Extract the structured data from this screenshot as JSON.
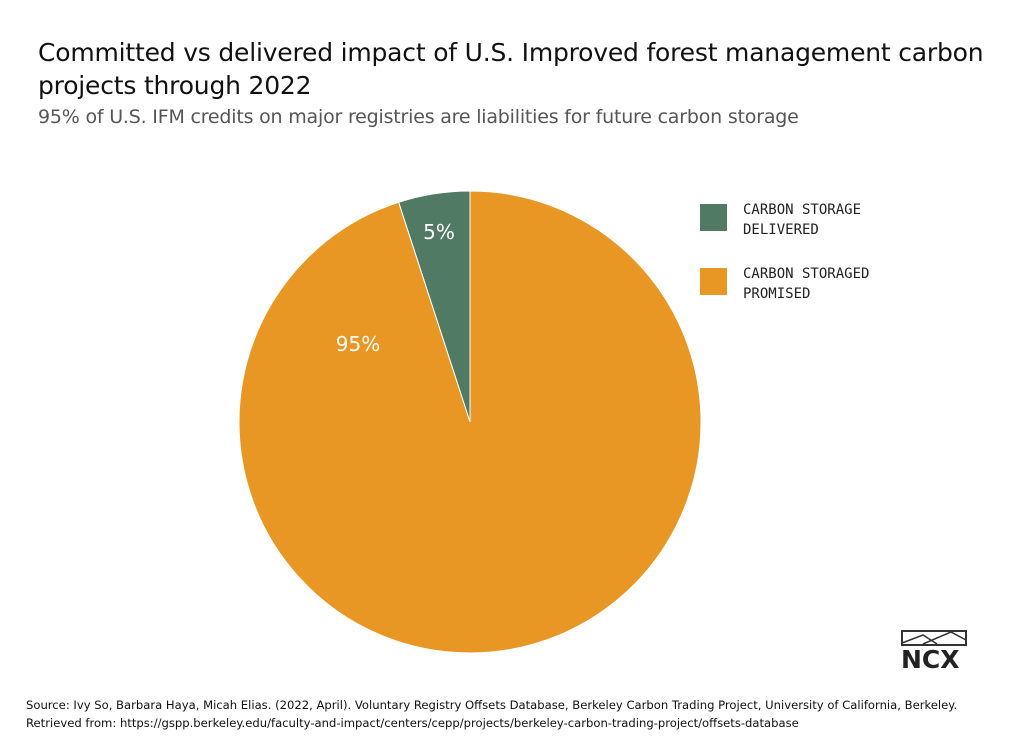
{
  "title": "Committed vs delivered impact of U.S. Improved forest management carbon projects through 2022",
  "subtitle": "95% of U.S. IFM credits on major registries are liabilities for future carbon storage",
  "chart_data": {
    "type": "pie",
    "categories": [
      "CARBON STORAGE DELIVERED",
      "CARBON STORAGED PROMISED"
    ],
    "values": [
      5,
      95
    ],
    "labels": [
      "5%",
      "95%"
    ],
    "colors": [
      "#507a63",
      "#e89624"
    ],
    "legend": "right"
  },
  "legend": [
    {
      "label_line1": "CARBON STORAGE",
      "label_line2": "DELIVERED",
      "color": "#507a63"
    },
    {
      "label_line1": "CARBON STORAGED",
      "label_line2": "PROMISED",
      "color": "#e89624"
    }
  ],
  "source": {
    "line1": "Source: Ivy So, Barbara Haya, Micah Elias. (2022, April). Voluntary Registry Offsets Database, Berkeley Carbon Trading Project, University of California, Berkeley.",
    "line2": "Retrieved from: https://gspp.berkeley.edu/faculty-and-impact/centers/cepp/projects/berkeley-carbon-trading-project/offsets-database"
  },
  "logo": {
    "text": "NCX"
  }
}
